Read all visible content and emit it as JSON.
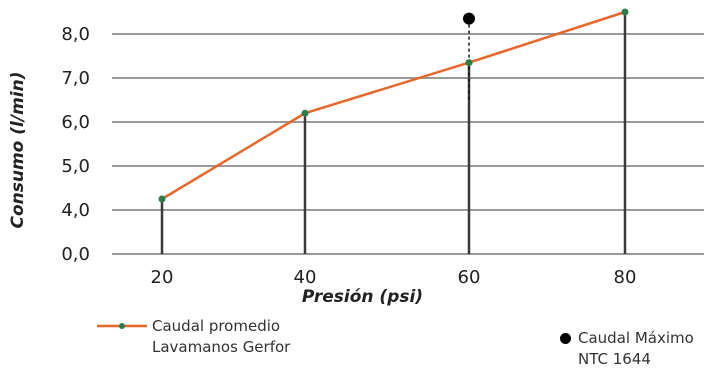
{
  "chart_data": {
    "type": "line",
    "xlabel": "Presión (psi)",
    "ylabel": "Consumo (l/min)",
    "x": [
      20,
      40,
      60,
      80
    ],
    "y_ticks": [
      "0,0",
      "4,0",
      "5,0",
      "6,0",
      "7,0",
      "8,0"
    ],
    "x_ticks": [
      "20",
      "40",
      "60",
      "80"
    ],
    "axis_break_note": "y axis jumps from 0,0 directly to 4,0",
    "series": [
      {
        "name": "Caudal promedio Lavamanos Gerfor",
        "values": [
          4.25,
          6.2,
          7.35,
          8.5
        ],
        "color": "#e8672a",
        "marker_color": "#2e7d4a"
      }
    ],
    "reference_points": [
      {
        "name": "Caudal Máximo NTC 1644",
        "x": 60,
        "y": 8.35,
        "color": "#000000"
      }
    ],
    "grid": true
  },
  "legend": {
    "series_line1": "Caudal promedio",
    "series_line2": "Lavamanos Gerfor",
    "ref_line1": "Caudal Máximo",
    "ref_line2": "NTC 1644"
  }
}
